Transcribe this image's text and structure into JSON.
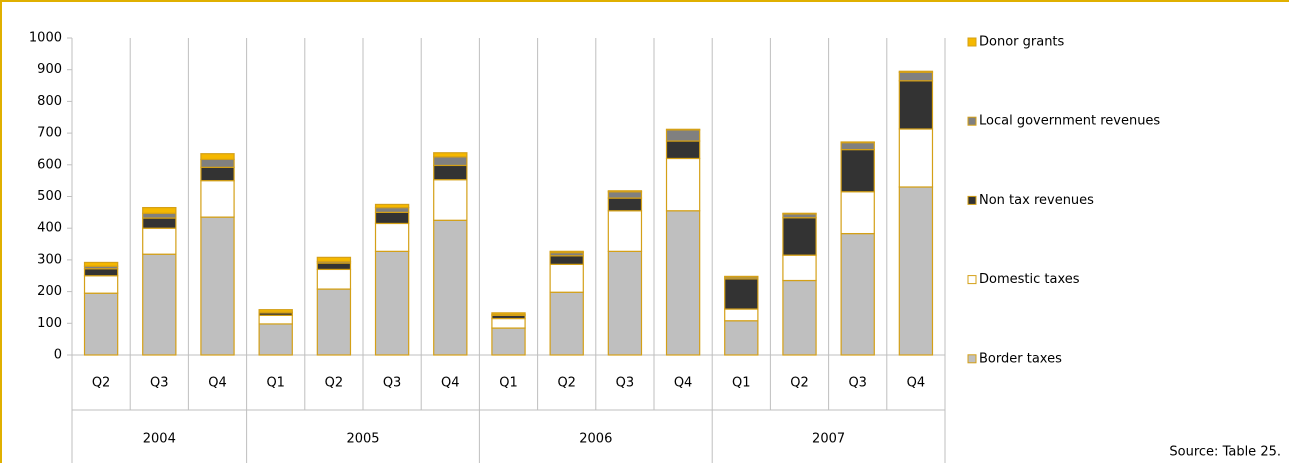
{
  "chart_data": {
    "type": "stacked_bar",
    "source": "Source: Table 25.",
    "category_groups": [
      {
        "label": "2004",
        "categories": [
          "Q2",
          "Q3",
          "Q4"
        ]
      },
      {
        "label": "2005",
        "categories": [
          "Q1",
          "Q2",
          "Q3",
          "Q4"
        ]
      },
      {
        "label": "2006",
        "categories": [
          "Q1",
          "Q2",
          "Q3",
          "Q4"
        ]
      },
      {
        "label": "2007",
        "categories": [
          "Q1",
          "Q2",
          "Q3",
          "Q4"
        ]
      }
    ],
    "series": [
      {
        "name": "Border taxes",
        "color": "#bfbfbf",
        "values": [
          195,
          318,
          435,
          98,
          208,
          327,
          425,
          85,
          198,
          327,
          455,
          108,
          235,
          383,
          530
        ]
      },
      {
        "name": "Domestic taxes",
        "color": "#ffffff",
        "values": [
          55,
          82,
          115,
          27,
          62,
          88,
          128,
          30,
          88,
          128,
          165,
          37,
          80,
          132,
          183
        ]
      },
      {
        "name": "Non tax revenues",
        "color": "#333333",
        "values": [
          22,
          32,
          42,
          8,
          20,
          35,
          45,
          10,
          27,
          40,
          55,
          95,
          118,
          133,
          152
        ]
      },
      {
        "name": "Local government revenues",
        "color": "#808080",
        "values": [
          8,
          15,
          25,
          2,
          5,
          15,
          27,
          3,
          10,
          20,
          35,
          6,
          12,
          22,
          27
        ]
      },
      {
        "name": "Donor grants",
        "color": "#f5b800",
        "values": [
          12,
          18,
          18,
          8,
          13,
          10,
          13,
          5,
          4,
          3,
          2,
          2,
          2,
          2,
          3
        ]
      }
    ],
    "bar_outline": "#d4a017",
    "ylim": [
      0,
      1000
    ],
    "yticks": [
      0,
      100,
      200,
      300,
      400,
      500,
      600,
      700,
      800,
      900,
      1000
    ]
  }
}
